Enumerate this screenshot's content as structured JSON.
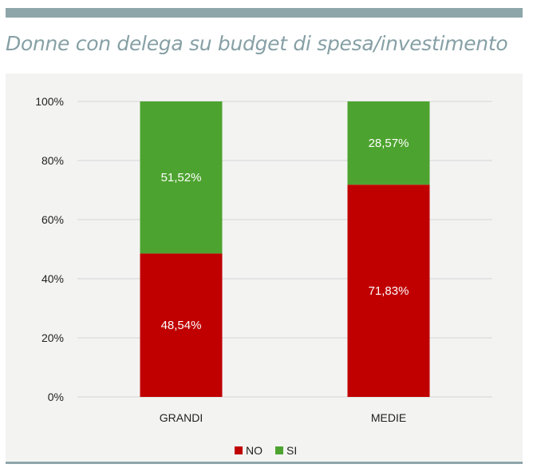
{
  "page": {
    "title": "Donne con delega su budget di spesa/investimento"
  },
  "colors": {
    "rule": "#8ea6aa",
    "title": "#86a0a5",
    "panel": "#f3f3f2",
    "no": "#c00000",
    "si": "#4da32f"
  },
  "chart_data": {
    "type": "bar",
    "stacked": true,
    "title": "Donne con delega su budget di spesa/investimento",
    "xlabel": "",
    "ylabel": "",
    "categories": [
      "GRANDI",
      "MEDIE"
    ],
    "series": [
      {
        "name": "NO",
        "color": "#c00000",
        "values": [
          48.54,
          71.83
        ],
        "labels": [
          "48,54%",
          "71,83%"
        ]
      },
      {
        "name": "SI",
        "color": "#4da32f",
        "values": [
          51.52,
          28.57
        ],
        "labels": [
          "51,52%",
          "28,57%"
        ]
      }
    ],
    "ylim": [
      0,
      100
    ],
    "yticks": [
      0,
      20,
      40,
      60,
      80,
      100
    ],
    "ytick_labels": [
      "0%",
      "20%",
      "40%",
      "60%",
      "80%",
      "100%"
    ],
    "grid": true,
    "legend_position": "bottom-center"
  }
}
